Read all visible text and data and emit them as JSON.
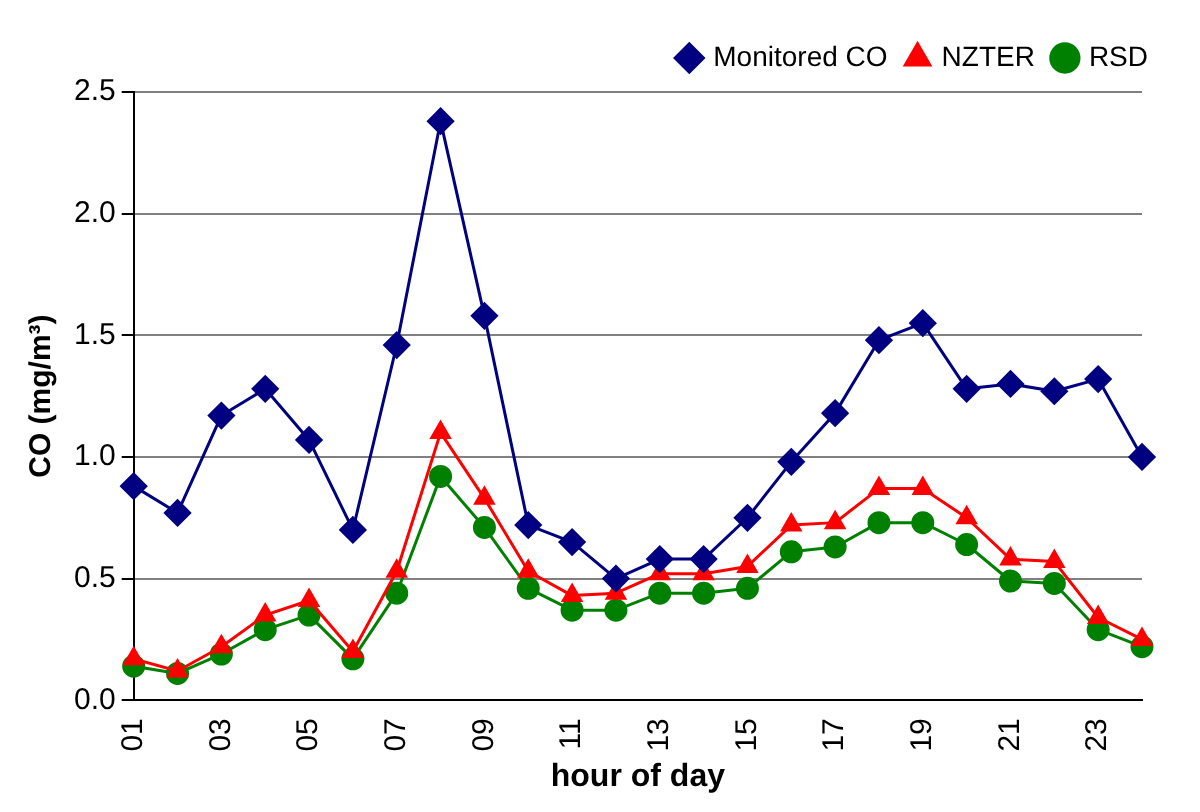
{
  "chart_data": {
    "type": "line",
    "xlabel": "hour of day",
    "ylabel": "CO (mg/m³)",
    "categories": [
      "01",
      null,
      "03",
      null,
      "05",
      null,
      "07",
      null,
      "09",
      null,
      "11",
      null,
      "13",
      null,
      "15",
      null,
      "17",
      null,
      "19",
      null,
      "21",
      null,
      "23",
      null
    ],
    "series": [
      {
        "name": "Monitored CO",
        "color": "#000080",
        "marker": "diamond",
        "values": [
          0.88,
          0.77,
          1.17,
          1.28,
          1.07,
          0.7,
          1.46,
          2.38,
          1.58,
          0.72,
          0.65,
          0.5,
          0.58,
          0.58,
          0.75,
          0.98,
          1.18,
          1.48,
          1.55,
          1.28,
          1.3,
          1.27,
          1.32,
          1.0
        ]
      },
      {
        "name": "NZTER",
        "color": "#ff0000",
        "marker": "triangle",
        "values": [
          0.17,
          0.12,
          0.22,
          0.35,
          0.41,
          0.2,
          0.53,
          1.1,
          0.83,
          0.53,
          0.43,
          0.44,
          0.52,
          0.52,
          0.55,
          0.72,
          0.73,
          0.87,
          0.87,
          0.75,
          0.58,
          0.57,
          0.34,
          0.25
        ]
      },
      {
        "name": "RSD",
        "color": "#008000",
        "marker": "circle",
        "values": [
          0.14,
          0.11,
          0.19,
          0.29,
          0.35,
          0.17,
          0.44,
          0.92,
          0.71,
          0.46,
          0.37,
          0.37,
          0.44,
          0.44,
          0.46,
          0.61,
          0.63,
          0.73,
          0.73,
          0.64,
          0.49,
          0.48,
          0.29,
          0.22
        ]
      }
    ],
    "ylim": [
      0,
      2.5
    ],
    "yticks": [
      {
        "value": 0,
        "label": "0.0"
      },
      0.5,
      {
        "value": 1,
        "label": "1.0"
      },
      1.5,
      {
        "value": 2,
        "label": "2.0"
      },
      2.5
    ],
    "grid": "y",
    "legend": "top right"
  }
}
